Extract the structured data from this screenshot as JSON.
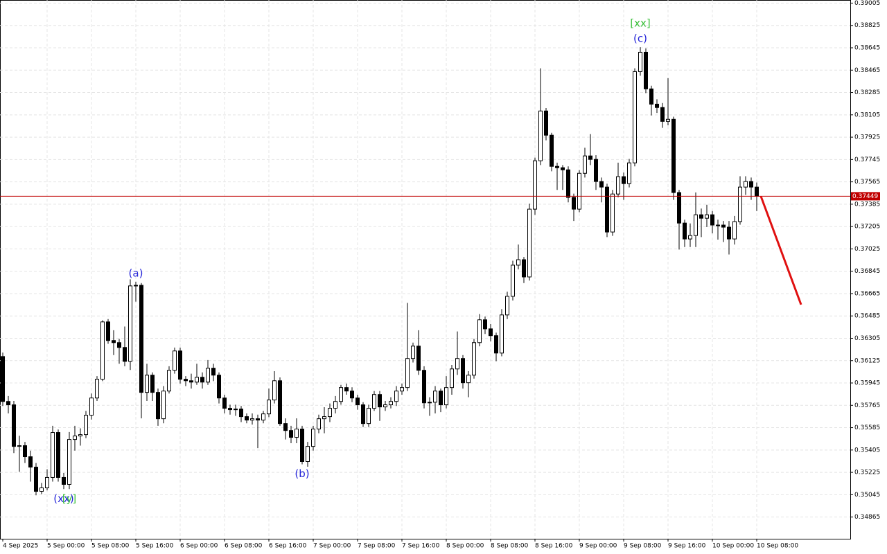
{
  "chart_data": {
    "type": "candlestick",
    "categories": [
      "4 Sep 2025",
      null,
      null,
      null,
      null,
      null,
      null,
      null,
      "5 Sep 00:00",
      null,
      null,
      null,
      null,
      null,
      null,
      null,
      "5 Sep 08:00",
      null,
      null,
      null,
      null,
      null,
      null,
      null,
      "5 Sep 16:00",
      null,
      null,
      null,
      null,
      null,
      null,
      null,
      "6 Sep 00:00",
      null,
      null,
      null,
      null,
      null,
      null,
      null,
      "6 Sep 08:00",
      null,
      null,
      null,
      null,
      null,
      null,
      null,
      "6 Sep 16:00",
      null,
      null,
      null,
      null,
      null,
      null,
      null,
      "7 Sep 00:00",
      null,
      null,
      null,
      null,
      null,
      null,
      null,
      "7 Sep 08:00",
      null,
      null,
      null,
      null,
      null,
      null,
      null,
      "7 Sep 16:00",
      null,
      null,
      null,
      null,
      null,
      null,
      null,
      "8 Sep 00:00",
      null,
      null,
      null,
      null,
      null,
      null,
      null,
      "8 Sep 08:00",
      null,
      null,
      null,
      null,
      null,
      null,
      null,
      "8 Sep 16:00",
      null,
      null,
      null,
      null,
      null,
      null,
      null,
      "9 Sep 00:00",
      null,
      null,
      null,
      null,
      null,
      null,
      null,
      "9 Sep 08:00",
      null,
      null,
      null,
      null,
      null,
      null,
      null,
      "9 Sep 16:00",
      null,
      null,
      null,
      null,
      null,
      null,
      null,
      "10 Sep 00:00",
      null,
      null,
      null,
      null,
      null,
      null,
      null,
      "10 Sep 08:00"
    ],
    "open": [
      0.36158,
      0.35796,
      0.35769,
      0.35434,
      0.3544,
      0.35351,
      0.35267,
      0.35072,
      0.351,
      0.35184,
      0.35546,
      0.35184,
      0.35128,
      0.3549,
      0.35518,
      0.35529,
      0.35685,
      0.35824,
      0.35975,
      0.36437,
      0.36287,
      0.3627,
      0.36231,
      0.36119,
      0.36727,
      0.36732,
      0.35869,
      0.36008,
      0.35869,
      0.35657,
      0.3588,
      0.36047,
      0.36203,
      0.35975,
      0.35963,
      0.35952,
      0.35991,
      0.35952,
      0.36064,
      0.36008,
      0.35824,
      0.35741,
      0.3573,
      0.35735,
      0.35674,
      0.35646,
      0.35657,
      0.35646,
      0.35696,
      0.35808,
      0.35963,
      0.35618,
      0.35562,
      0.35507,
      0.35574,
      0.35312,
      0.35434,
      0.35574,
      0.35657,
      0.35674,
      0.35741,
      0.35796,
      0.35908,
      0.3588,
      0.35824,
      0.35769,
      0.35618,
      0.35741,
      0.35852,
      0.35752,
      0.35769,
      0.35796,
      0.3588,
      0.35908,
      0.36142,
      0.36242,
      0.36047,
      0.35785,
      0.3579,
      0.3588,
      0.35769,
      0.35908,
      0.36058,
      0.36142,
      0.35947,
      0.36008,
      0.3627,
      0.36454,
      0.36381,
      0.36326,
      0.36186,
      0.36493,
      0.36643,
      0.36894,
      0.36938,
      0.36799,
      0.37345,
      0.37735,
      0.38136,
      0.37941,
      0.3769,
      0.37679,
      0.37662,
      0.3744,
      0.37345,
      0.37634,
      0.37774,
      0.37746,
      0.37568,
      0.37523,
      0.37161,
      0.37467,
      0.37607,
      0.37551,
      0.37718,
      0.38453,
      0.38609,
      0.38314,
      0.38191,
      0.38164,
      0.38052,
      0.38069,
      0.37479,
      0.37233,
      0.37105,
      0.37133,
      0.373,
      0.37272,
      0.373,
      0.37217,
      0.37217,
      0.372,
      0.37105,
      0.37245,
      0.37523,
      0.37568,
      0.37523
    ],
    "high": [
      0.3619,
      0.3584,
      0.358,
      0.3552,
      0.3547,
      0.354,
      0.353,
      0.3514,
      0.3525,
      0.356,
      0.3557,
      0.3522,
      0.3555,
      0.356,
      0.3558,
      0.3572,
      0.3586,
      0.36,
      0.3645,
      0.3646,
      0.3637,
      0.363,
      0.364,
      0.3678,
      0.3676,
      0.3675,
      0.361,
      0.3603,
      0.359,
      0.3592,
      0.3608,
      0.3623,
      0.3623,
      0.36,
      0.3602,
      0.361,
      0.3603,
      0.3613,
      0.361,
      0.3603,
      0.3585,
      0.3577,
      0.3577,
      0.3576,
      0.357,
      0.357,
      0.3569,
      0.3572,
      0.359,
      0.3604,
      0.3599,
      0.3566,
      0.356,
      0.3566,
      0.356,
      0.3547,
      0.356,
      0.3569,
      0.3575,
      0.3578,
      0.3584,
      0.3593,
      0.3594,
      0.3591,
      0.3585,
      0.3579,
      0.3577,
      0.3588,
      0.3588,
      0.358,
      0.3583,
      0.3592,
      0.3594,
      0.3659,
      0.3627,
      0.3637,
      0.3608,
      0.3583,
      0.3592,
      0.359,
      0.36,
      0.3609,
      0.3636,
      0.3617,
      0.3604,
      0.363,
      0.365,
      0.3648,
      0.3642,
      0.3635,
      0.3654,
      0.3668,
      0.3693,
      0.3706,
      0.3696,
      0.3739,
      0.3776,
      0.3848,
      0.3816,
      0.3796,
      0.3772,
      0.377,
      0.3769,
      0.3747,
      0.3766,
      0.3784,
      0.3795,
      0.3778,
      0.376,
      0.3755,
      0.375,
      0.3772,
      0.3764,
      0.3775,
      0.3848,
      0.3865,
      0.3864,
      0.3834,
      0.3823,
      0.382,
      0.384,
      0.3809,
      0.375,
      0.3726,
      0.3723,
      0.3748,
      0.3735,
      0.3738,
      0.3733,
      0.3726,
      0.3725,
      0.3725,
      0.3729,
      0.3761,
      0.3761,
      0.376,
      0.3756
    ],
    "low": [
      0.3576,
      0.357,
      0.3538,
      0.3523,
      0.353,
      0.3515,
      0.3504,
      0.3505,
      0.3508,
      0.3515,
      0.3515,
      0.3509,
      0.3509,
      0.354,
      0.3544,
      0.355,
      0.3565,
      0.358,
      0.3596,
      0.3626,
      0.3617,
      0.361,
      0.3608,
      0.3605,
      0.366,
      0.3566,
      0.358,
      0.358,
      0.356,
      0.3562,
      0.3586,
      0.3602,
      0.3594,
      0.3592,
      0.359,
      0.3593,
      0.359,
      0.3593,
      0.3596,
      0.3578,
      0.357,
      0.3569,
      0.3568,
      0.3563,
      0.3562,
      0.3561,
      0.3542,
      0.3562,
      0.3567,
      0.3578,
      0.356,
      0.3549,
      0.3546,
      0.3546,
      0.3529,
      0.3527,
      0.354,
      0.3554,
      0.3554,
      0.3563,
      0.357,
      0.3577,
      0.3585,
      0.3579,
      0.3573,
      0.3559,
      0.3559,
      0.3572,
      0.3564,
      0.3572,
      0.3574,
      0.3576,
      0.3585,
      0.3588,
      0.3611,
      0.3601,
      0.3574,
      0.3568,
      0.357,
      0.3571,
      0.3574,
      0.3585,
      0.3601,
      0.359,
      0.3583,
      0.3598,
      0.3624,
      0.3634,
      0.3628,
      0.3612,
      0.3616,
      0.3646,
      0.3661,
      0.3686,
      0.3675,
      0.3677,
      0.373,
      0.377,
      0.379,
      0.3765,
      0.375,
      0.375,
      0.374,
      0.3725,
      0.3732,
      0.376,
      0.377,
      0.375,
      0.374,
      0.3712,
      0.3713,
      0.3744,
      0.3742,
      0.3752,
      0.3769,
      0.3842,
      0.3828,
      0.381,
      0.3812,
      0.38,
      0.3802,
      0.3742,
      0.3702,
      0.3704,
      0.3704,
      0.3704,
      0.3712,
      0.372,
      0.3715,
      0.371,
      0.3708,
      0.3698,
      0.3706,
      0.3722,
      0.3746,
      0.3742,
      0.3733
    ],
    "close": [
      0.35796,
      0.35769,
      0.35434,
      0.3544,
      0.35351,
      0.35267,
      0.35072,
      0.351,
      0.35184,
      0.35546,
      0.35184,
      0.35128,
      0.3549,
      0.35518,
      0.35529,
      0.35685,
      0.35824,
      0.35975,
      0.36437,
      0.36287,
      0.3627,
      0.36231,
      0.36119,
      0.36727,
      0.36732,
      0.35869,
      0.36008,
      0.35869,
      0.35657,
      0.3588,
      0.36047,
      0.36203,
      0.35975,
      0.35963,
      0.35952,
      0.35991,
      0.35952,
      0.36064,
      0.36008,
      0.35824,
      0.35741,
      0.3573,
      0.35735,
      0.35674,
      0.35646,
      0.35657,
      0.35646,
      0.35696,
      0.35808,
      0.35963,
      0.35618,
      0.35562,
      0.35507,
      0.35574,
      0.35312,
      0.35434,
      0.35574,
      0.35657,
      0.35674,
      0.35741,
      0.35796,
      0.35908,
      0.3588,
      0.35824,
      0.35769,
      0.35618,
      0.35741,
      0.35852,
      0.35752,
      0.35769,
      0.35796,
      0.3588,
      0.35908,
      0.36142,
      0.36242,
      0.36047,
      0.35785,
      0.3579,
      0.3588,
      0.35769,
      0.35908,
      0.36058,
      0.36142,
      0.35947,
      0.36008,
      0.3627,
      0.36454,
      0.36381,
      0.36326,
      0.36186,
      0.36493,
      0.36643,
      0.36894,
      0.36938,
      0.36799,
      0.37345,
      0.37735,
      0.38136,
      0.37941,
      0.3769,
      0.37679,
      0.37662,
      0.3744,
      0.37345,
      0.37634,
      0.37774,
      0.37746,
      0.37568,
      0.37523,
      0.37161,
      0.37467,
      0.37607,
      0.37551,
      0.37718,
      0.38453,
      0.38609,
      0.38314,
      0.38191,
      0.38164,
      0.38052,
      0.38069,
      0.37479,
      0.37233,
      0.37105,
      0.37133,
      0.373,
      0.37272,
      0.373,
      0.37217,
      0.37217,
      0.372,
      0.37105,
      0.37245,
      0.37523,
      0.37568,
      0.37523,
      0.37449
    ],
    "ylim": [
      0.3469,
      0.3903
    ],
    "yticks": [
      0.39005,
      0.38825,
      0.38645,
      0.38465,
      0.38285,
      0.38105,
      0.37925,
      0.37745,
      0.37565,
      0.37385,
      0.37205,
      0.37025,
      0.36845,
      0.36665,
      0.36485,
      0.36305,
      0.36125,
      0.35945,
      0.35765,
      0.35585,
      0.35405,
      0.35225,
      0.35045,
      0.34865
    ],
    "grid": true,
    "up_color": "#ffffff",
    "down_color": "#000000",
    "current_price": {
      "value": 0.37449,
      "label": "0.37449",
      "color": "#c00000"
    },
    "forecast": {
      "x": [
        136,
        144
      ],
      "y": [
        0.37449,
        0.36576
      ],
      "color": "#e01010"
    },
    "annotations": [
      {
        "text": "(a)",
        "index": 24,
        "position": "above",
        "color": "#2626d9"
      },
      {
        "text": "(b)",
        "index": 54,
        "position": "below",
        "color": "#2626d9"
      },
      {
        "text": "(c)",
        "index": 115,
        "position": "above",
        "color": "#2626d9"
      },
      {
        "text": "[xx]",
        "index": 115,
        "position": "above",
        "color": "#3cc03c"
      },
      {
        "text": "(xx)",
        "index": 11,
        "position": "below",
        "color": "#2626d9"
      },
      {
        "text": "[y]",
        "index": 12,
        "position": "below",
        "color": "#3cc03c"
      }
    ]
  }
}
